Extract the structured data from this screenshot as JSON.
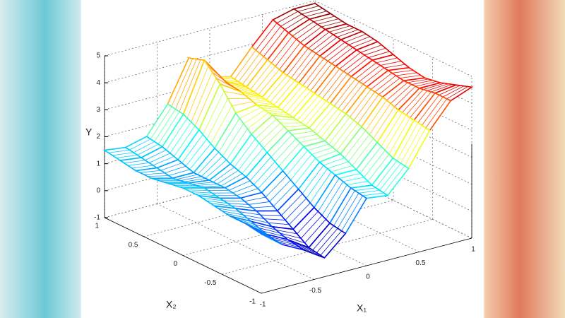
{
  "chart_data": {
    "type": "surface",
    "y_label": "Y",
    "x1_label": "X₁",
    "x2_label": "X₂",
    "x1": [
      -1,
      -0.8,
      -0.6,
      -0.4,
      -0.2,
      0,
      0.2,
      0.4,
      0.6,
      0.8,
      1
    ],
    "x2": [
      -1,
      -0.8,
      -0.6,
      -0.4,
      -0.2,
      0,
      0.2,
      0.4,
      0.6,
      0.8,
      1
    ],
    "z": [
      [
        1.2,
        0.6,
        0.2,
        -0.3,
        0.4,
        1.5,
        1.4,
        2.2,
        3.4,
        4.3,
        4.6
      ],
      [
        1.3,
        0.7,
        0.3,
        -0.2,
        0.5,
        1.6,
        1.5,
        2.3,
        3.5,
        4.3,
        4.4
      ],
      [
        1.3,
        0.9,
        0.5,
        0.2,
        0.8,
        1.8,
        1.8,
        2.6,
        3.6,
        4.2,
        4.2
      ],
      [
        1.4,
        1.1,
        0.8,
        0.6,
        1.2,
        2.0,
        2.1,
        2.9,
        3.8,
        4.2,
        4.1
      ],
      [
        1.5,
        1.2,
        1.0,
        1.0,
        1.6,
        2.3,
        2.3,
        3.1,
        3.9,
        4.3,
        4.2
      ],
      [
        1.5,
        1.3,
        1.1,
        1.3,
        2.0,
        2.6,
        2.5,
        3.2,
        4.0,
        4.4,
        4.4
      ],
      [
        1.4,
        1.2,
        1.1,
        1.5,
        2.4,
        2.9,
        2.6,
        3.3,
        4.1,
        4.5,
        4.6
      ],
      [
        1.3,
        1.1,
        1.1,
        1.8,
        2.9,
        3.0,
        2.7,
        3.4,
        4.2,
        4.6,
        4.7
      ],
      [
        1.3,
        1.2,
        1.3,
        2.2,
        3.7,
        3.2,
        2.8,
        3.5,
        4.3,
        4.7,
        4.7
      ],
      [
        1.4,
        1.3,
        1.5,
        2.5,
        4.3,
        3.3,
        2.9,
        3.7,
        4.5,
        4.8,
        4.8
      ],
      [
        1.5,
        1.4,
        1.6,
        2.6,
        4.1,
        3.2,
        3.0,
        3.9,
        4.7,
        4.9,
        4.9
      ]
    ],
    "x1lim": [
      -1,
      1
    ],
    "x2lim": [
      -1,
      1
    ],
    "ylim": [
      -1,
      5
    ],
    "x1ticks": [
      -1,
      -0.5,
      0,
      0.5,
      1
    ],
    "x2ticks": [
      -1,
      -0.5,
      0,
      0.5,
      1
    ],
    "yticks": [
      -1,
      0,
      1,
      2,
      3,
      4,
      5
    ],
    "colormap": "jet",
    "grid": true
  }
}
